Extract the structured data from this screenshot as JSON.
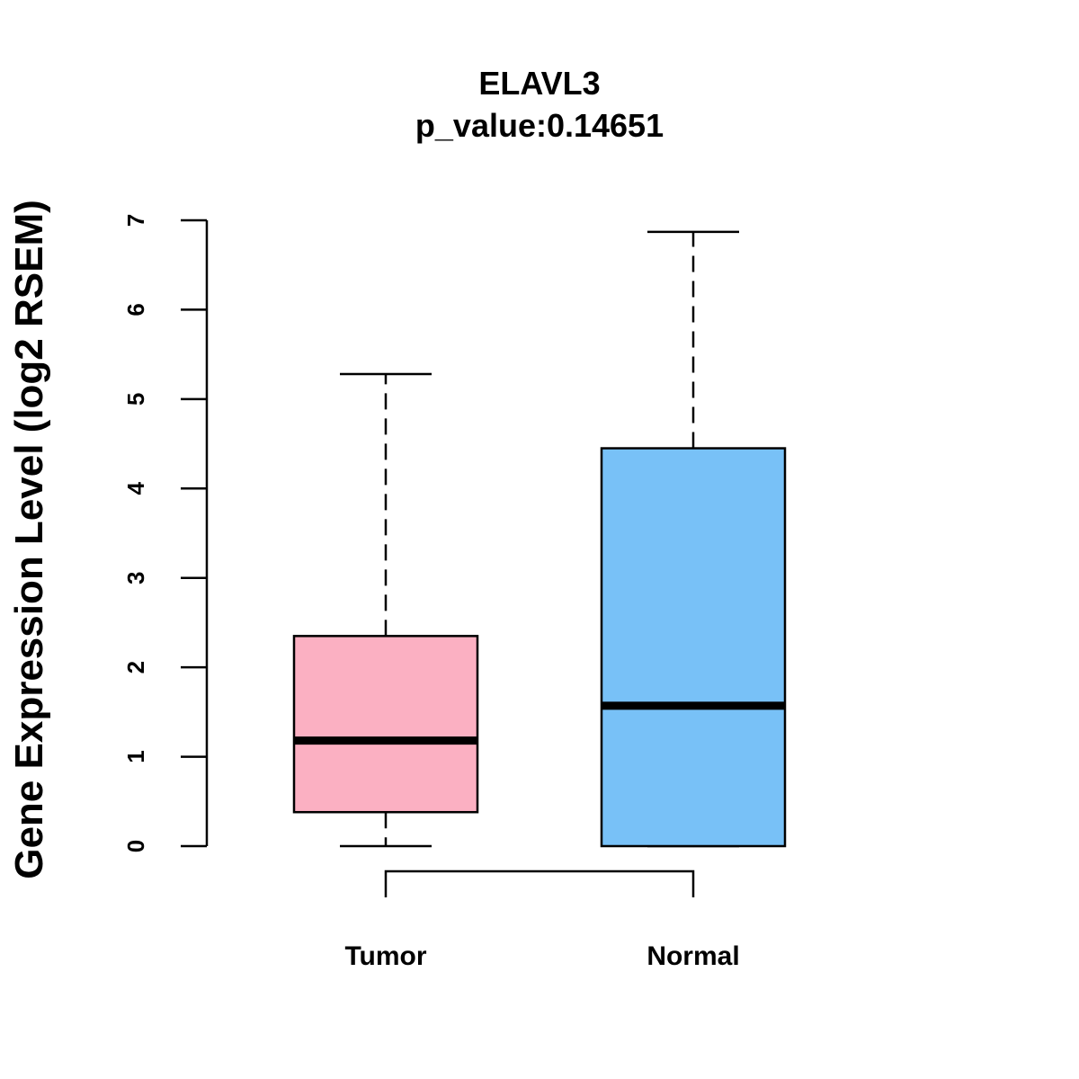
{
  "chart_data": {
    "type": "boxplot",
    "title": "ELAVL3",
    "subtitle": "p_value:0.14651",
    "ylabel": "Gene Expression Level (log2 RSEM)",
    "xlabel": "",
    "ylim": [
      0,
      7
    ],
    "yticks": [
      0,
      1,
      2,
      3,
      4,
      5,
      6,
      7
    ],
    "grid": false,
    "series": [
      {
        "name": "Tumor",
        "color": "#fbb0c2",
        "whisker_low": 0,
        "q1": 0.38,
        "median": 1.18,
        "q3": 2.35,
        "whisker_high": 5.28
      },
      {
        "name": "Normal",
        "color": "#78c1f7",
        "whisker_low": 0,
        "q1": 0,
        "median": 1.57,
        "q3": 4.45,
        "whisker_high": 6.87
      }
    ],
    "comparison_bracket": [
      "Tumor",
      "Normal"
    ]
  }
}
